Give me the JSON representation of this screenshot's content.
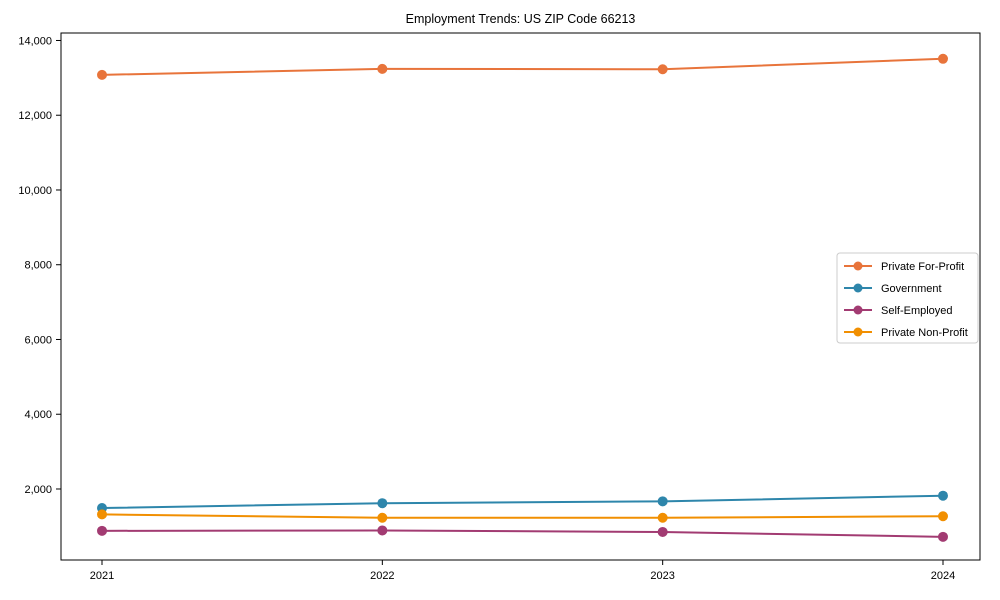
{
  "chart_data": {
    "type": "line",
    "title": "Employment Trends: US ZIP Code 66213",
    "categories": [
      "2021",
      "2022",
      "2023",
      "2024"
    ],
    "series": [
      {
        "name": "Private For-Profit",
        "color": "#E8743B",
        "values": [
          13080,
          13240,
          13230,
          13510
        ]
      },
      {
        "name": "Government",
        "color": "#2E86AB",
        "values": [
          1490,
          1620,
          1670,
          1820
        ]
      },
      {
        "name": "Self-Employed",
        "color": "#A23B72",
        "values": [
          880,
          890,
          850,
          720
        ]
      },
      {
        "name": "Private Non-Profit",
        "color": "#F18F01",
        "values": [
          1320,
          1230,
          1230,
          1270
        ]
      }
    ],
    "xlabel": "",
    "ylabel": "",
    "ylim": [
      100,
      14200
    ],
    "yticks": [
      2000,
      4000,
      6000,
      8000,
      10000,
      12000,
      14000
    ],
    "ytick_labels": [
      "2,000",
      "4,000",
      "6,000",
      "8,000",
      "10,000",
      "12,000",
      "14,000"
    ],
    "grid": false,
    "marker": "circle",
    "legend": {
      "position": "middle-right",
      "entries": [
        "Private For-Profit",
        "Government",
        "Self-Employed",
        "Private Non-Profit"
      ]
    },
    "axis_color": "#000000",
    "text_color": "#000000",
    "legend_border_color": "#cccccc",
    "background_color": "#ffffff"
  }
}
